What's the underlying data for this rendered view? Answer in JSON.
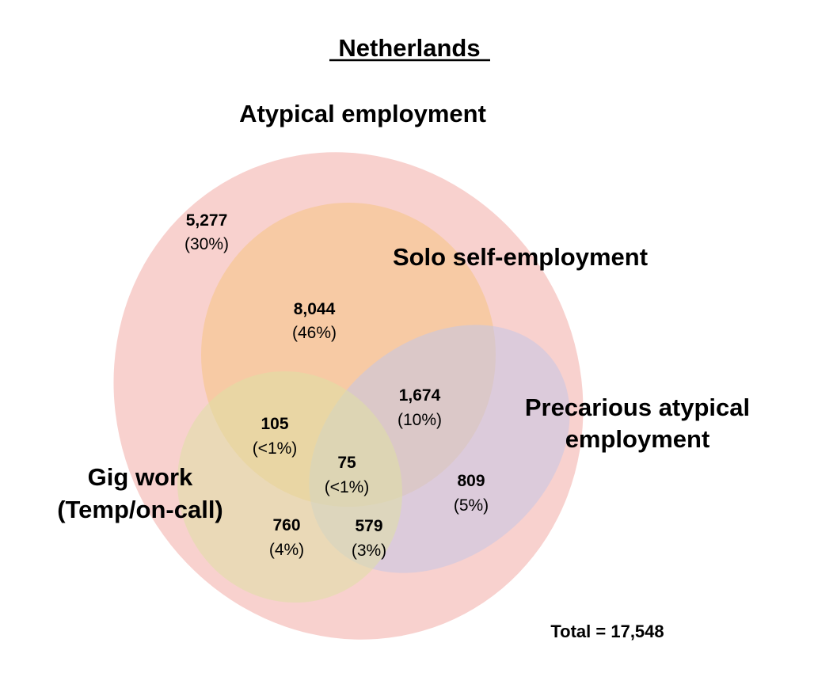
{
  "title": "Netherlands",
  "total_label": "Total = 17,548",
  "colors": {
    "atypical": "#f4b8b4",
    "solo": "#f7c796",
    "precarious": "#c4c6e6",
    "gig": "#dfe0a4"
  },
  "sets": {
    "atypical": "Atypical employment",
    "solo": "Solo self-employment",
    "precarious": [
      "Precarious atypical",
      "employment"
    ],
    "gig": [
      "Gig work",
      "(Temp/on-call)"
    ]
  },
  "regions": {
    "atypical_only": {
      "count": "5,277",
      "pct": "(30%)"
    },
    "solo": {
      "count": "8,044",
      "pct": "(46%)"
    },
    "solo_precarious": {
      "count": "1,674",
      "pct": "(10%)"
    },
    "solo_gig": {
      "count": "105",
      "pct": "(<1%)"
    },
    "all_three": {
      "count": "75",
      "pct": "(<1%)"
    },
    "precarious_only": {
      "count": "809",
      "pct": "(5%)"
    },
    "gig_only": {
      "count": "760",
      "pct": "(4%)"
    },
    "gig_precarious": {
      "count": "579",
      "pct": "(3%)"
    }
  }
}
